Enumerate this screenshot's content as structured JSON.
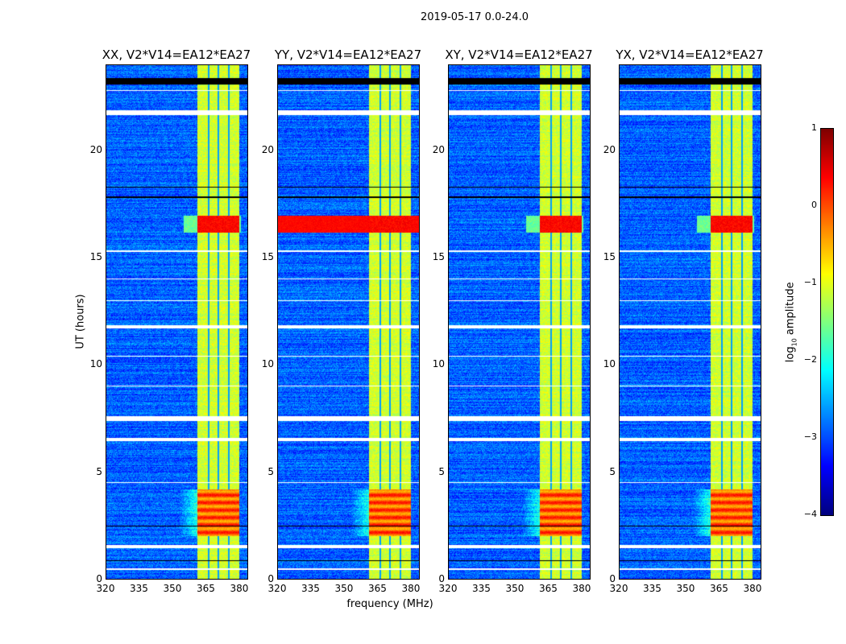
{
  "title": "2019-05-17 0.0-24.0",
  "chart_data": {
    "type": "heatmap",
    "title": "2019-05-17 0.0-24.0",
    "xlabel": "frequency (MHz)",
    "ylabel": "UT (hours)",
    "xlim": [
      320,
      384
    ],
    "ylim": [
      0,
      24
    ],
    "xticks": [
      "320",
      "335",
      "350",
      "365",
      "380"
    ],
    "xtick_values": [
      320,
      335,
      350,
      365,
      380
    ],
    "yticks": [
      "0",
      "5",
      "10",
      "15",
      "20"
    ],
    "ytick_values": [
      0,
      5,
      10,
      15,
      20
    ],
    "panels": [
      {
        "title": "XX, V2*V14=EA12*EA27",
        "event_full_band": false
      },
      {
        "title": "YY, V2*V14=EA12*EA27",
        "event_full_band": true
      },
      {
        "title": "XY, V2*V14=EA12*EA27",
        "event_full_band": false
      },
      {
        "title": "YX, V2*V14=EA12*EA27",
        "event_full_band": false
      }
    ],
    "rfi_band_mhz": [
      361,
      380
    ],
    "band_gaps_mhz": [
      366.3,
      370.6,
      375.5
    ],
    "flagged_hours_white": [
      [
        0.45,
        0.5
      ],
      [
        1.45,
        1.6
      ],
      [
        4.5,
        4.55
      ],
      [
        6.45,
        6.6
      ],
      [
        7.4,
        7.6
      ],
      [
        9.0,
        9.05
      ],
      [
        10.4,
        10.45
      ],
      [
        11.7,
        11.85
      ],
      [
        13.0,
        13.05
      ],
      [
        14.0,
        14.05
      ],
      [
        15.3,
        15.35
      ],
      [
        21.7,
        21.9
      ],
      [
        22.8,
        22.85
      ]
    ],
    "flagged_hours_black": [
      [
        0.85,
        0.9
      ],
      [
        2.45,
        2.5
      ],
      [
        17.8,
        17.9
      ],
      [
        18.3,
        18.35
      ],
      [
        23.1,
        23.4
      ]
    ],
    "hot_events_hours": [
      [
        2.0,
        4.2
      ],
      [
        16.2,
        17.0
      ]
    ],
    "colorbar": {
      "label": "log10 amplitude",
      "range": [
        -4,
        1
      ],
      "ticks": [
        "−4",
        "−3",
        "−2",
        "−1",
        "0",
        "1"
      ],
      "tick_values": [
        -4,
        -3,
        -2,
        -1,
        0,
        1
      ],
      "colormap": "jet"
    }
  }
}
